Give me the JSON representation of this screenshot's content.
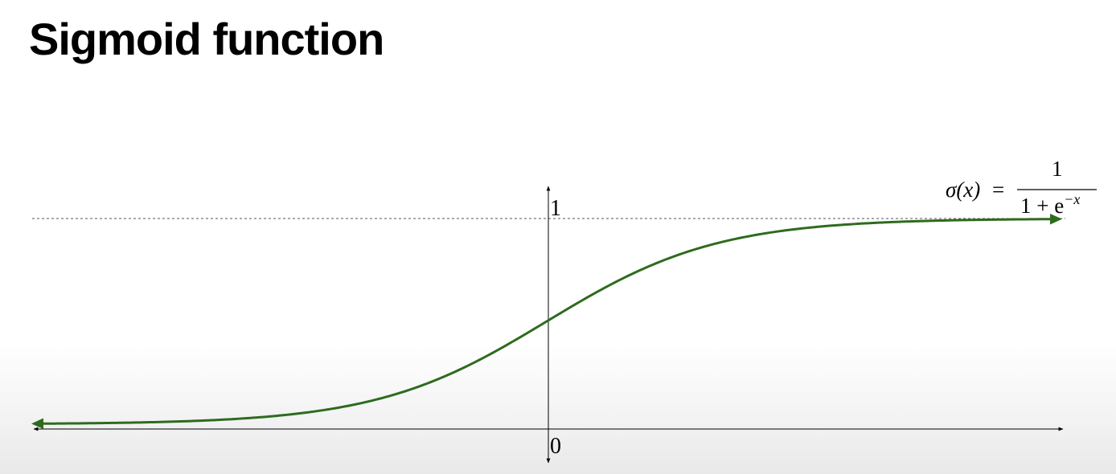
{
  "slide": {
    "title": "Sigmoid function"
  },
  "formula": {
    "lhs": "σ(x)",
    "equals": "=",
    "numerator": "1",
    "denominator_base": "1 + e",
    "denominator_exponent": "−x"
  },
  "axes": {
    "y_tick_top": "1",
    "origin_label": "0"
  },
  "colors": {
    "curve": "#2e6b1e",
    "axis": "#000000",
    "asymptote": "#555555"
  },
  "chart_data": {
    "type": "line",
    "function": "sigmoid",
    "title": "",
    "xlabel": "",
    "ylabel": "",
    "ylim": [
      0,
      1
    ],
    "asymptote_y": 1,
    "tick_labels": [
      "0",
      "1"
    ],
    "x": [
      -6,
      -5,
      -4,
      -3,
      -2,
      -1,
      0,
      1,
      2,
      3,
      4,
      5,
      6
    ],
    "series": [
      {
        "values": [
          0.0025,
          0.0067,
          0.018,
          0.047,
          0.119,
          0.269,
          0.5,
          0.731,
          0.881,
          0.953,
          0.982,
          0.9933,
          0.9975
        ]
      }
    ]
  }
}
